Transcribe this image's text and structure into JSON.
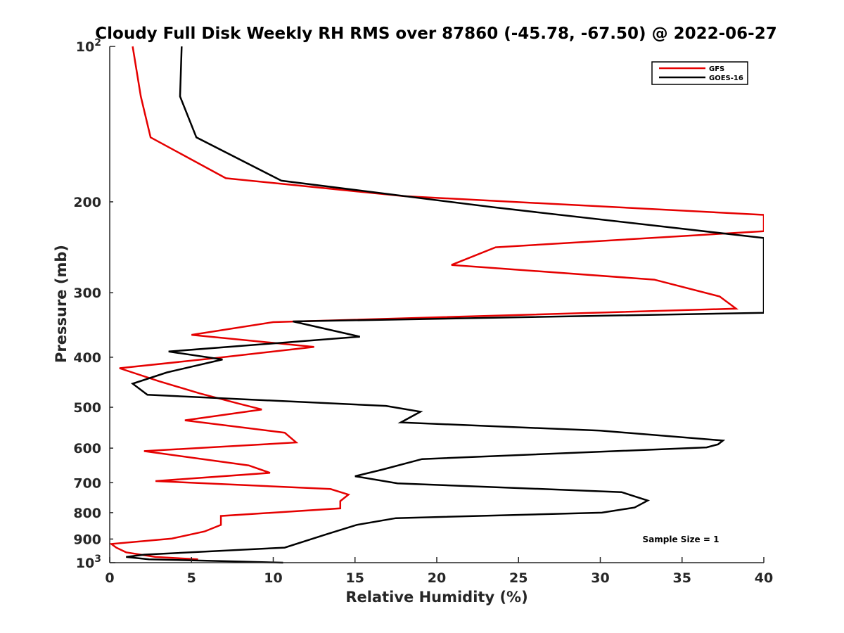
{
  "chart_data": {
    "type": "line",
    "title": "Cloudy Full Disk Weekly RH RMS over 87860 (-45.78, -67.50) @ 2022-06-27",
    "xlabel": "Relative Humidity (%)",
    "ylabel": "Pressure (mb)",
    "xlim": [
      0,
      40
    ],
    "ylim": [
      100,
      1000
    ],
    "y_scale": "log",
    "y_reversed": true,
    "grid": false,
    "legend_position": "top-right",
    "x_ticks": [
      0,
      5,
      10,
      15,
      20,
      25,
      30,
      35,
      40
    ],
    "y_tick_labels": [
      {
        "value": 100,
        "base": "10",
        "exp": "2"
      },
      {
        "value": 200,
        "label": "200"
      },
      {
        "value": 300,
        "label": "300"
      },
      {
        "value": 400,
        "label": "400"
      },
      {
        "value": 500,
        "label": "500"
      },
      {
        "value": 600,
        "label": "600"
      },
      {
        "value": 700,
        "label": "700"
      },
      {
        "value": 800,
        "label": "800"
      },
      {
        "value": 900,
        "label": "900"
      },
      {
        "value": 1000,
        "base": "10",
        "exp": "3"
      }
    ],
    "annotation": "Sample Size = 1",
    "series": [
      {
        "name": "GFS",
        "color": "#e50000",
        "points": [
          [
            1.4,
            100
          ],
          [
            1.9,
            125
          ],
          [
            2.5,
            150
          ],
          [
            7.1,
            180
          ],
          [
            18.0,
            195
          ],
          [
            40.0,
            212
          ],
          [
            40.0,
            228
          ],
          [
            23.6,
            245
          ],
          [
            20.9,
            265
          ],
          [
            33.3,
            283
          ],
          [
            37.3,
            305
          ],
          [
            38.3,
            322
          ],
          [
            10.0,
            342
          ],
          [
            5.0,
            362
          ],
          [
            12.5,
            382
          ],
          [
            6.0,
            403
          ],
          [
            0.6,
            420
          ],
          [
            3.0,
            445
          ],
          [
            5.5,
            470
          ],
          [
            7.9,
            492
          ],
          [
            9.3,
            505
          ],
          [
            4.6,
            530
          ],
          [
            10.7,
            560
          ],
          [
            11.4,
            585
          ],
          [
            2.1,
            608
          ],
          [
            8.5,
            648
          ],
          [
            9.8,
            670
          ],
          [
            2.8,
            695
          ],
          [
            13.5,
            720
          ],
          [
            14.6,
            738
          ],
          [
            14.1,
            760
          ],
          [
            14.1,
            785
          ],
          [
            6.8,
            812
          ],
          [
            6.8,
            845
          ],
          [
            5.8,
            870
          ],
          [
            3.8,
            898
          ],
          [
            0.1,
            920
          ],
          [
            0.4,
            935
          ],
          [
            1.0,
            955
          ],
          [
            2.8,
            975
          ],
          [
            5.4,
            985
          ]
        ]
      },
      {
        "name": "GOES-16",
        "color": "#000000",
        "points": [
          [
            4.4,
            100
          ],
          [
            4.3,
            125
          ],
          [
            5.3,
            150
          ],
          [
            10.5,
            182
          ],
          [
            23.5,
            205
          ],
          [
            40.0,
            235
          ],
          [
            40.0,
            328
          ],
          [
            11.2,
            341
          ],
          [
            15.3,
            365
          ],
          [
            3.6,
            390
          ],
          [
            6.9,
            404
          ],
          [
            3.5,
            428
          ],
          [
            1.4,
            450
          ],
          [
            2.3,
            473
          ],
          [
            16.9,
            497
          ],
          [
            19.0,
            510
          ],
          [
            17.8,
            535
          ],
          [
            30.0,
            555
          ],
          [
            37.5,
            580
          ],
          [
            37.2,
            590
          ],
          [
            36.5,
            598
          ],
          [
            19.1,
            630
          ],
          [
            16.7,
            660
          ],
          [
            15.0,
            680
          ],
          [
            17.6,
            702
          ],
          [
            31.3,
            730
          ],
          [
            32.9,
            758
          ],
          [
            32.1,
            782
          ],
          [
            30.1,
            800
          ],
          [
            17.5,
            820
          ],
          [
            15.1,
            845
          ],
          [
            13.3,
            880
          ],
          [
            10.7,
            935
          ],
          [
            2.1,
            965
          ],
          [
            1.0,
            975
          ],
          [
            2.4,
            985
          ],
          [
            7.9,
            995
          ],
          [
            10.6,
            1000
          ]
        ]
      }
    ]
  }
}
